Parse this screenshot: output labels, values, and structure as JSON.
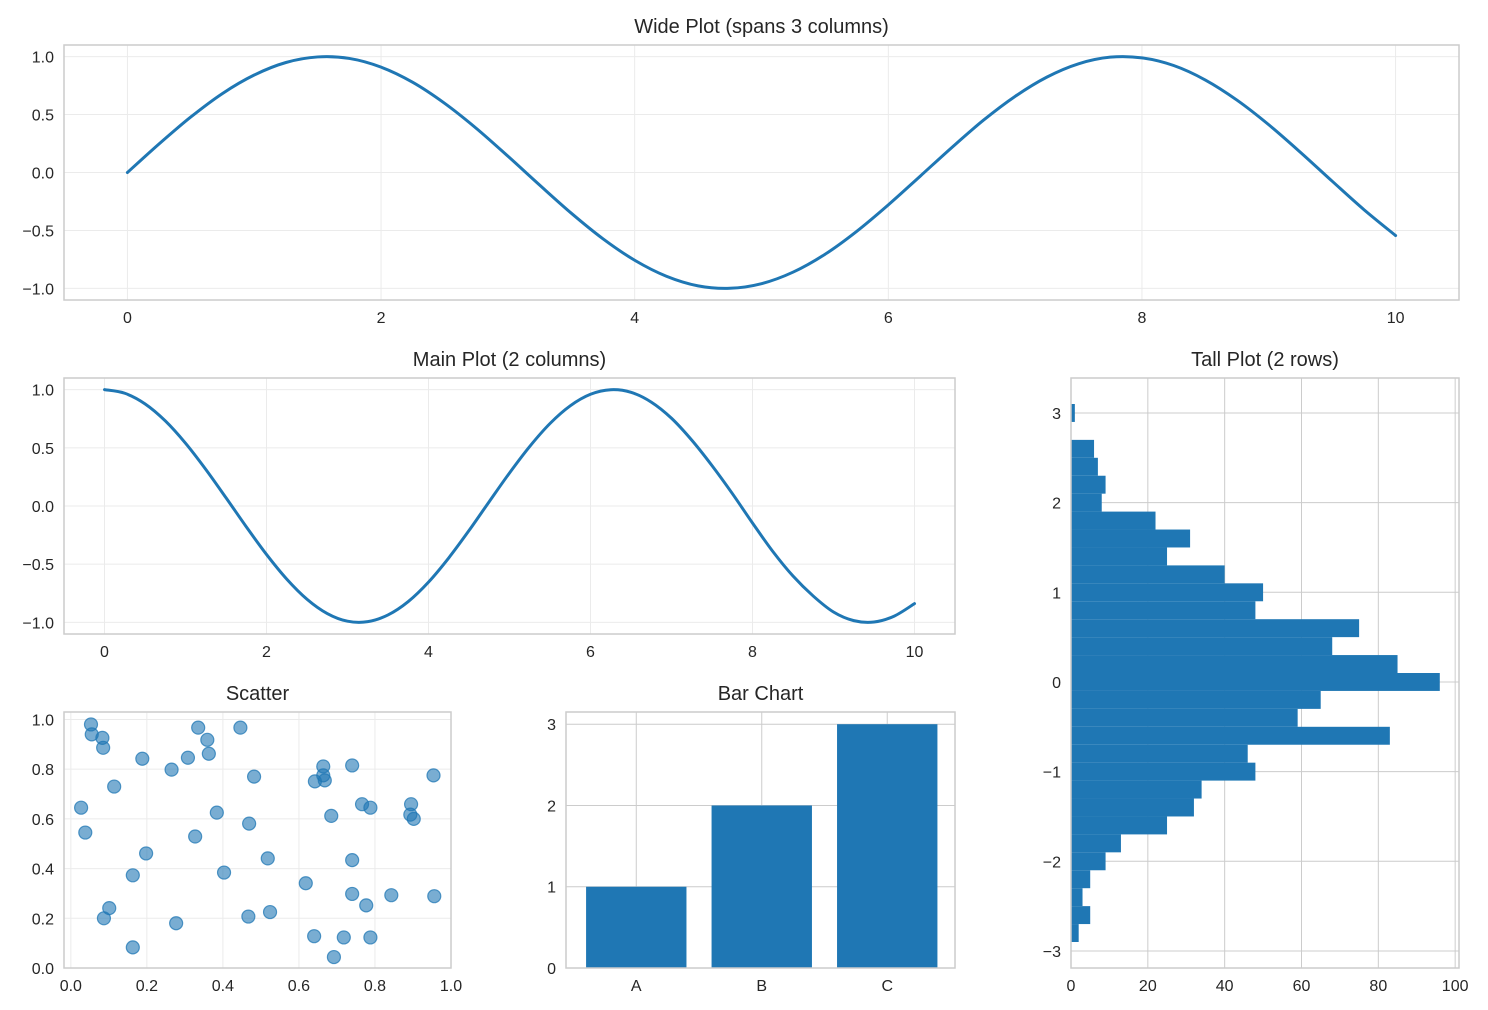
{
  "colors": {
    "primary": "#1f77b4",
    "spine": "#cccccc",
    "grid_light": "#ebebeb",
    "grid_dark": "#cccccc",
    "text": "#262626"
  },
  "chart_data": [
    {
      "id": "wide",
      "type": "line",
      "title": "Wide Plot (spans 3 columns)",
      "grid": true,
      "xlim": [
        -0.5,
        10.5
      ],
      "ylim": [
        -1.1,
        1.1
      ],
      "xticks": [
        0,
        2,
        4,
        6,
        8,
        10
      ],
      "xtick_labels": [
        "0",
        "2",
        "4",
        "6",
        "8",
        "10"
      ],
      "yticks": [
        -1.0,
        -0.5,
        0.0,
        0.5,
        1.0
      ],
      "ytick_labels": [
        "−1.0",
        "−0.5",
        "0.0",
        "0.5",
        "1.0"
      ],
      "x_step": 0.25,
      "x_start": 0,
      "y": [
        0,
        0.247,
        0.479,
        0.682,
        0.841,
        0.949,
        0.997,
        0.984,
        0.909,
        0.778,
        0.598,
        0.382,
        0.141,
        -0.108,
        -0.351,
        -0.572,
        -0.757,
        -0.895,
        -0.978,
        -0.999,
        -0.959,
        -0.859,
        -0.706,
        -0.508,
        -0.279,
        -0.033,
        0.215,
        0.451,
        0.657,
        0.823,
        0.938,
        0.995,
        0.989,
        0.923,
        0.798,
        0.624,
        0.412,
        0.174,
        -0.075,
        -0.32,
        -0.544
      ]
    },
    {
      "id": "main",
      "type": "line",
      "title": "Main Plot (2 columns)",
      "grid": true,
      "xlim": [
        -0.5,
        10.5
      ],
      "ylim": [
        -1.1,
        1.1
      ],
      "xticks": [
        0,
        2,
        4,
        6,
        8,
        10
      ],
      "xtick_labels": [
        "0",
        "2",
        "4",
        "6",
        "8",
        "10"
      ],
      "yticks": [
        -1.0,
        -0.5,
        0.0,
        0.5,
        1.0
      ],
      "ytick_labels": [
        "−1.0",
        "−0.5",
        "0.0",
        "0.5",
        "1.0"
      ],
      "x_step": 0.25,
      "x_start": 0,
      "y": [
        1,
        0.969,
        0.878,
        0.732,
        0.54,
        0.315,
        0.071,
        -0.178,
        -0.416,
        -0.628,
        -0.801,
        -0.924,
        -0.99,
        -0.994,
        -0.936,
        -0.821,
        -0.654,
        -0.446,
        -0.211,
        0.038,
        0.284,
        0.512,
        0.709,
        0.861,
        0.96,
        0.999,
        0.977,
        0.893,
        0.754,
        0.566,
        0.347,
        0.108,
        -0.146,
        -0.39,
        -0.602,
        -0.774,
        -0.911,
        -0.985,
        -0.997,
        -0.946,
        -0.839
      ]
    },
    {
      "id": "tall",
      "type": "bar",
      "orientation": "horizontal",
      "title": "Tall Plot (2 rows)",
      "grid": true,
      "xlim": [
        0,
        101
      ],
      "ylim": [
        -3.19,
        3.39
      ],
      "xticks": [
        0,
        20,
        40,
        60,
        80,
        100
      ],
      "xtick_labels": [
        "0",
        "20",
        "40",
        "60",
        "80",
        "100"
      ],
      "yticks": [
        -3,
        -2,
        -1,
        0,
        1,
        2,
        3
      ],
      "ytick_labels": [
        "−3",
        "−2",
        "−1",
        "0",
        "1",
        "2",
        "3"
      ],
      "bin_start": -2.9,
      "bin_width": 0.2,
      "counts": [
        2,
        5,
        3,
        5,
        9,
        13,
        25,
        32,
        34,
        48,
        46,
        83,
        59,
        65,
        96,
        85,
        68,
        75,
        48,
        50,
        40,
        25,
        31,
        22,
        8,
        9,
        7,
        6,
        0,
        1
      ]
    },
    {
      "id": "scatter",
      "type": "scatter",
      "title": "Scatter",
      "grid": true,
      "alpha": 0.6,
      "xlim": [
        -0.018,
        1.0
      ],
      "ylim": [
        0,
        1.03
      ],
      "xticks": [
        0,
        0.2,
        0.4,
        0.6,
        0.8,
        1.0
      ],
      "xtick_labels": [
        "0.0",
        "0.2",
        "0.4",
        "0.6",
        "0.8",
        "1.0"
      ],
      "yticks": [
        0,
        0.2,
        0.4,
        0.6,
        0.8,
        1.0
      ],
      "ytick_labels": [
        "0.0",
        "0.2",
        "0.4",
        "0.6",
        "0.8",
        "1.0"
      ],
      "points": [
        [
          0.053,
          0.98
        ],
        [
          0.055,
          0.94
        ],
        [
          0.083,
          0.926
        ],
        [
          0.085,
          0.886
        ],
        [
          0.188,
          0.842
        ],
        [
          0.335,
          0.967
        ],
        [
          0.359,
          0.918
        ],
        [
          0.308,
          0.846
        ],
        [
          0.363,
          0.862
        ],
        [
          0.446,
          0.967
        ],
        [
          0.265,
          0.798
        ],
        [
          0.482,
          0.77
        ],
        [
          0.114,
          0.73
        ],
        [
          0.027,
          0.645
        ],
        [
          0.384,
          0.625
        ],
        [
          0.469,
          0.581
        ],
        [
          0.038,
          0.545
        ],
        [
          0.327,
          0.529
        ],
        [
          0.198,
          0.461
        ],
        [
          0.163,
          0.373
        ],
        [
          0.403,
          0.384
        ],
        [
          0.101,
          0.241
        ],
        [
          0.087,
          0.2
        ],
        [
          0.277,
          0.18
        ],
        [
          0.467,
          0.207
        ],
        [
          0.163,
          0.083
        ],
        [
          0.518,
          0.441
        ],
        [
          0.524,
          0.225
        ],
        [
          0.664,
          0.811
        ],
        [
          0.664,
          0.775
        ],
        [
          0.642,
          0.751
        ],
        [
          0.668,
          0.755
        ],
        [
          0.74,
          0.815
        ],
        [
          0.954,
          0.775
        ],
        [
          0.766,
          0.659
        ],
        [
          0.788,
          0.645
        ],
        [
          0.685,
          0.612
        ],
        [
          0.895,
          0.659
        ],
        [
          0.893,
          0.617
        ],
        [
          0.902,
          0.6
        ],
        [
          0.74,
          0.434
        ],
        [
          0.618,
          0.341
        ],
        [
          0.74,
          0.298
        ],
        [
          0.777,
          0.252
        ],
        [
          0.843,
          0.293
        ],
        [
          0.956,
          0.289
        ],
        [
          0.64,
          0.128
        ],
        [
          0.718,
          0.123
        ],
        [
          0.788,
          0.123
        ],
        [
          0.692,
          0.044
        ]
      ]
    },
    {
      "id": "bar",
      "type": "bar",
      "title": "Bar Chart",
      "grid": true,
      "xlim": [
        -0.56,
        2.54
      ],
      "ylim": [
        0,
        3.15
      ],
      "categories": [
        "A",
        "B",
        "C"
      ],
      "values": [
        1,
        2,
        3
      ],
      "yticks": [
        0,
        1,
        2,
        3
      ],
      "ytick_labels": [
        "0",
        "1",
        "2",
        "3"
      ]
    }
  ]
}
